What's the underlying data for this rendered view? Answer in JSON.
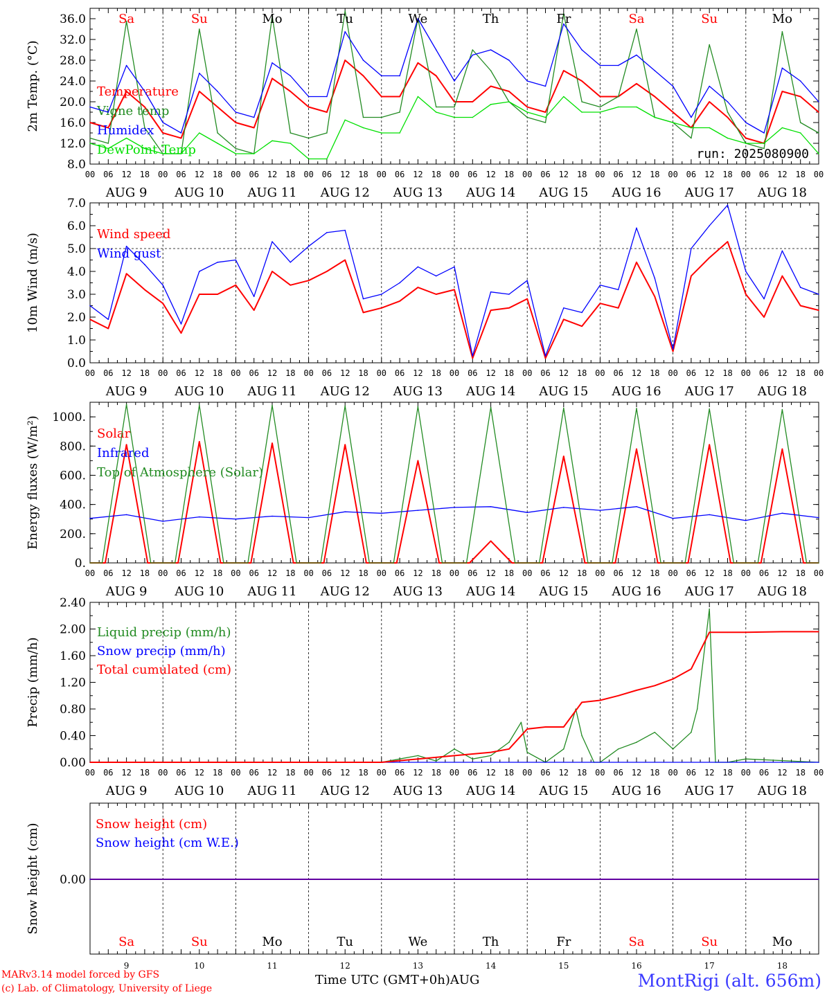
{
  "run_label": "run: 2025080900",
  "station": "MontRigi (alt. 656m)",
  "credits": [
    "MARv3.14 model forced by GFS",
    "(c) Lab. of Climatology, University of Liege"
  ],
  "xaxis_title": "Time UTC (GMT+0h)",
  "month_label": "AUG",
  "hour_ticks": [
    "00",
    "06",
    "12",
    "18"
  ],
  "final_hour_tick": "00",
  "date_labels": [
    "AUG  9",
    "AUG 10",
    "AUG 11",
    "AUG 12",
    "AUG 13",
    "AUG 14",
    "AUG 15",
    "AUG 16",
    "AUG 17",
    "AUG 18"
  ],
  "day_numbers": [
    "9",
    "10",
    "11",
    "12",
    "13",
    "14",
    "15",
    "16",
    "17",
    "18"
  ],
  "weekdays": [
    {
      "label": "Sa",
      "color": "#ff0000"
    },
    {
      "label": "Su",
      "color": "#ff0000"
    },
    {
      "label": "Mo",
      "color": "#000000"
    },
    {
      "label": "Tu",
      "color": "#000000"
    },
    {
      "label": "We",
      "color": "#000000"
    },
    {
      "label": "Th",
      "color": "#000000"
    },
    {
      "label": "Fr",
      "color": "#000000"
    },
    {
      "label": "Sa",
      "color": "#ff0000"
    },
    {
      "label": "Su",
      "color": "#ff0000"
    },
    {
      "label": "Mo",
      "color": "#000000"
    }
  ],
  "chart_data": [
    {
      "type": "line",
      "ylabel": "2m Temp. (°C)",
      "ylim": [
        8,
        38
      ],
      "yticks": [
        "8.0",
        "12.0",
        "16.0",
        "20.0",
        "24.0",
        "28.0",
        "32.0",
        "36.0"
      ],
      "ytick_values": [
        8,
        12,
        16,
        20,
        24,
        28,
        32,
        36
      ],
      "series": [
        {
          "name": "Temperature",
          "color": "#ff0000",
          "x": [
            0,
            6,
            12,
            18,
            24,
            30,
            36,
            42,
            48,
            54,
            60,
            66,
            72,
            78,
            84,
            90,
            96,
            102,
            108,
            114,
            120,
            126,
            132,
            138,
            144,
            150,
            156,
            162,
            168,
            174,
            180,
            186,
            192,
            198,
            204,
            210,
            216,
            222,
            228,
            234,
            240
          ],
          "values": [
            16,
            15,
            22,
            19,
            14,
            13,
            22,
            19,
            16,
            15,
            24.5,
            22,
            19,
            18,
            28,
            25,
            21,
            21,
            27.5,
            25,
            20,
            20,
            23,
            22,
            19,
            18,
            26,
            24,
            21,
            21,
            23.5,
            21,
            18,
            15,
            20,
            17,
            13,
            12,
            22,
            21,
            18
          ]
        },
        {
          "name": "Vigne temp",
          "color": "#228b22",
          "x": [
            0,
            6,
            12,
            18,
            24,
            30,
            36,
            42,
            48,
            54,
            60,
            66,
            72,
            78,
            84,
            90,
            96,
            102,
            108,
            114,
            120,
            126,
            132,
            138,
            144,
            150,
            156,
            162,
            168,
            174,
            180,
            186,
            192,
            198,
            204,
            210,
            216,
            222,
            228,
            234,
            240
          ],
          "values": [
            13,
            12,
            35.5,
            15,
            10,
            10,
            34,
            14,
            11,
            10,
            36.5,
            14,
            13,
            14,
            37.5,
            17,
            17,
            18,
            36,
            19,
            19,
            30,
            26,
            20,
            17,
            16,
            37,
            20,
            19,
            21,
            34,
            17,
            16,
            13,
            31,
            18,
            12,
            11,
            33.5,
            16,
            14
          ]
        },
        {
          "name": "Humidex",
          "color": "#0000ff",
          "x": [
            0,
            6,
            12,
            18,
            24,
            30,
            36,
            42,
            48,
            54,
            60,
            66,
            72,
            78,
            84,
            90,
            96,
            102,
            108,
            114,
            120,
            126,
            132,
            138,
            144,
            150,
            156,
            162,
            168,
            174,
            180,
            186,
            192,
            198,
            204,
            210,
            216,
            222,
            228,
            234,
            240
          ],
          "values": [
            19,
            18,
            27,
            22,
            16,
            14,
            25.5,
            22,
            18,
            17,
            27.5,
            25,
            21,
            21,
            33.5,
            28,
            25,
            25,
            36,
            30,
            24,
            29,
            30,
            28,
            24,
            23,
            35,
            30,
            27,
            27,
            29,
            26,
            23,
            17,
            23,
            20,
            16,
            14,
            26.5,
            24,
            20
          ]
        },
        {
          "name": "DewPoint Temp",
          "color": "#00e000",
          "x": [
            0,
            6,
            12,
            18,
            24,
            30,
            36,
            42,
            48,
            54,
            60,
            66,
            72,
            78,
            84,
            90,
            96,
            102,
            108,
            114,
            120,
            126,
            132,
            138,
            144,
            150,
            156,
            162,
            168,
            174,
            180,
            186,
            192,
            198,
            204,
            210,
            216,
            222,
            228,
            234,
            240
          ],
          "values": [
            12,
            11,
            13,
            11,
            10,
            10,
            14,
            12,
            10,
            10,
            12.5,
            12,
            9,
            9,
            16.5,
            15,
            14,
            14,
            21,
            18,
            17,
            17,
            19.5,
            20,
            18,
            17,
            21,
            18,
            18,
            19,
            19,
            17,
            16,
            15,
            15,
            13,
            12,
            12,
            15,
            14,
            10
          ]
        }
      ]
    },
    {
      "type": "line",
      "ylabel": "10m Wind (m/s)",
      "ylim": [
        0,
        7
      ],
      "yticks": [
        "0.0",
        "1.0",
        "2.0",
        "3.0",
        "4.0",
        "5.0",
        "6.0",
        "7.0"
      ],
      "ytick_values": [
        0,
        1,
        2,
        3,
        4,
        5,
        6,
        7
      ],
      "reference_line": 5,
      "series": [
        {
          "name": "Wind speed",
          "color": "#ff0000",
          "x": [
            0,
            6,
            12,
            18,
            24,
            30,
            36,
            42,
            48,
            54,
            60,
            66,
            72,
            78,
            84,
            90,
            96,
            102,
            108,
            114,
            120,
            126,
            132,
            138,
            144,
            150,
            156,
            162,
            168,
            174,
            180,
            186,
            192,
            198,
            204,
            210,
            216,
            222,
            228,
            234,
            240
          ],
          "values": [
            1.9,
            1.5,
            3.9,
            3.2,
            2.6,
            1.3,
            3.0,
            3.0,
            3.4,
            2.3,
            4.0,
            3.4,
            3.6,
            4.0,
            4.5,
            2.2,
            2.4,
            2.7,
            3.3,
            3.0,
            3.2,
            0.2,
            2.3,
            2.4,
            2.8,
            0.2,
            1.9,
            1.6,
            2.6,
            2.4,
            4.4,
            2.9,
            0.5,
            3.8,
            4.6,
            5.3,
            3.0,
            2.0,
            3.8,
            2.5,
            2.3
          ]
        },
        {
          "name": "Wind gust",
          "color": "#0000ff",
          "x": [
            0,
            6,
            12,
            18,
            24,
            30,
            36,
            42,
            48,
            54,
            60,
            66,
            72,
            78,
            84,
            90,
            96,
            102,
            108,
            114,
            120,
            126,
            132,
            138,
            144,
            150,
            156,
            162,
            168,
            174,
            180,
            186,
            192,
            198,
            204,
            210,
            216,
            222,
            228,
            234,
            240
          ],
          "values": [
            2.5,
            1.9,
            5.1,
            4.3,
            3.4,
            1.7,
            4.0,
            4.4,
            4.5,
            2.9,
            5.3,
            4.4,
            5.1,
            5.7,
            5.8,
            2.8,
            3.0,
            3.5,
            4.2,
            3.8,
            4.2,
            0.3,
            3.1,
            3.0,
            3.6,
            0.3,
            2.4,
            2.2,
            3.4,
            3.2,
            5.9,
            3.7,
            0.6,
            5.0,
            6.0,
            6.9,
            4.0,
            2.8,
            4.9,
            3.3,
            3.0
          ]
        }
      ]
    },
    {
      "type": "line",
      "ylabel": "Energy fluxes (W/m²)",
      "ylim": [
        0,
        1100
      ],
      "yticks": [
        "0.",
        "200.",
        "400.",
        "600.",
        "800.",
        "1000."
      ],
      "ytick_values": [
        0,
        200,
        400,
        600,
        800,
        1000
      ],
      "series": [
        {
          "name": "Solar",
          "color": "#ff0000",
          "x": [
            0,
            5,
            12,
            19,
            24,
            29,
            36,
            43,
            48,
            53,
            60,
            67,
            72,
            77,
            84,
            91,
            96,
            101,
            108,
            115,
            120,
            125,
            132,
            139,
            144,
            149,
            156,
            163,
            168,
            173,
            180,
            187,
            192,
            197,
            204,
            211,
            216,
            221,
            228,
            235,
            240
          ],
          "values": [
            0,
            0,
            810,
            0,
            0,
            0,
            830,
            0,
            0,
            0,
            820,
            0,
            0,
            0,
            810,
            0,
            0,
            0,
            700,
            0,
            0,
            0,
            150,
            0,
            0,
            0,
            730,
            0,
            0,
            0,
            780,
            0,
            0,
            0,
            810,
            0,
            0,
            0,
            780,
            0,
            0
          ]
        },
        {
          "name": "Infrared",
          "color": "#0000ff",
          "x": [
            0,
            12,
            24,
            36,
            48,
            60,
            72,
            84,
            96,
            108,
            120,
            132,
            144,
            156,
            168,
            180,
            192,
            204,
            216,
            228,
            240
          ],
          "values": [
            305,
            330,
            285,
            315,
            300,
            320,
            310,
            350,
            340,
            360,
            380,
            385,
            345,
            380,
            360,
            385,
            305,
            330,
            290,
            340,
            310
          ]
        },
        {
          "name": "Top of Atmosphere (Solar)",
          "color": "#228b22",
          "x": [
            0,
            4,
            12,
            20,
            24,
            28,
            36,
            44,
            48,
            52,
            60,
            68,
            72,
            76,
            84,
            92,
            96,
            100,
            108,
            116,
            120,
            124,
            132,
            140,
            144,
            148,
            156,
            164,
            168,
            172,
            180,
            188,
            192,
            196,
            204,
            212,
            216,
            220,
            228,
            236,
            240
          ],
          "values": [
            0,
            0,
            1085,
            0,
            0,
            0,
            1080,
            0,
            0,
            0,
            1078,
            0,
            0,
            0,
            1075,
            0,
            0,
            0,
            1070,
            0,
            0,
            0,
            1065,
            0,
            0,
            0,
            1060,
            0,
            0,
            0,
            1058,
            0,
            0,
            0,
            1055,
            0,
            0,
            0,
            1050,
            0,
            0
          ]
        }
      ]
    },
    {
      "type": "line",
      "ylabel": "Precip (mm/h)",
      "ylim": [
        0,
        2.4
      ],
      "yticks": [
        "0.00",
        "0.40",
        "0.80",
        "1.20",
        "1.60",
        "2.00",
        "2.40"
      ],
      "ytick_values": [
        0,
        0.4,
        0.8,
        1.2,
        1.6,
        2.0,
        2.4
      ],
      "series": [
        {
          "name": "Liquid precip (mm/h)",
          "color": "#228b22",
          "x": [
            0,
            96,
            102,
            108,
            114,
            120,
            126,
            132,
            138,
            142,
            144,
            150,
            156,
            160,
            162,
            166,
            168,
            174,
            180,
            186,
            192,
            198,
            200,
            204,
            206,
            210,
            216,
            240
          ],
          "values": [
            0,
            0,
            0.05,
            0.1,
            0.02,
            0.2,
            0.05,
            0.1,
            0.3,
            0.6,
            0.15,
            0,
            0.2,
            0.8,
            0.4,
            0,
            0,
            0.2,
            0.3,
            0.45,
            0.2,
            0.45,
            0.8,
            2.3,
            0,
            0,
            0.05,
            0
          ]
        },
        {
          "name": "Snow precip (mm/h)",
          "color": "#0000ff",
          "x": [
            0,
            240
          ],
          "values": [
            0,
            0
          ]
        },
        {
          "name": "Total cumulated (cm)",
          "color": "#ff0000",
          "x": [
            0,
            96,
            108,
            120,
            132,
            138,
            144,
            150,
            156,
            162,
            168,
            174,
            180,
            186,
            192,
            198,
            204,
            210,
            216,
            228,
            240
          ],
          "values": [
            0,
            0,
            0.05,
            0.1,
            0.15,
            0.2,
            0.5,
            0.53,
            0.53,
            0.9,
            0.93,
            1.0,
            1.08,
            1.15,
            1.25,
            1.4,
            1.95,
            1.95,
            1.95,
            1.96,
            1.96
          ]
        }
      ]
    },
    {
      "type": "line",
      "ylabel": "Snow height (cm)",
      "yticks": [
        "0.00"
      ],
      "ytick_values": [
        0
      ],
      "series": [
        {
          "name": "Snow height (cm)",
          "color": "#ff0000",
          "x": [
            0,
            240
          ],
          "values": [
            0,
            0
          ]
        },
        {
          "name": "Snow height (cm W.E.)",
          "color": "#0000ff",
          "x": [
            0,
            240
          ],
          "values": [
            0,
            0
          ]
        }
      ]
    }
  ]
}
